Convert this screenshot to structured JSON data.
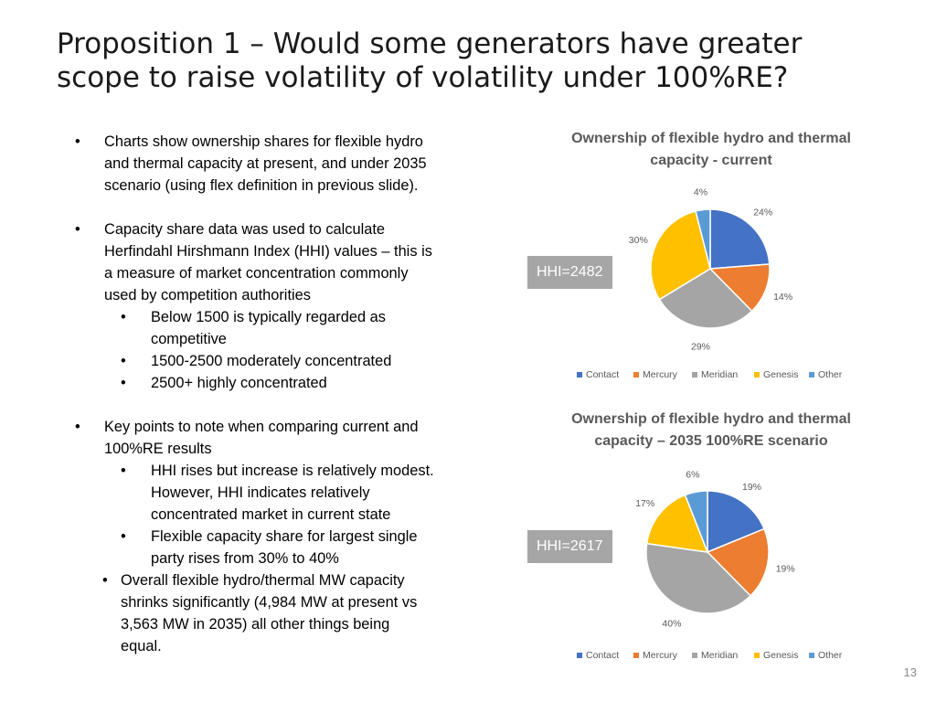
{
  "slide": {
    "title_line1": "Proposition 1 – Would some generators have greater",
    "title_line2": "scope to raise volatility of volatility under 100%RE?",
    "page_number": "13"
  },
  "bullets": {
    "b1_l1": "Charts show ownership shares for flexible hydro",
    "b1_l2": "and thermal capacity at present, and under 2035",
    "b1_l3": "scenario (using flex definition in previous slide).",
    "b2_l1": "Capacity share data was used to calculate",
    "b2_l2": "Herfindahl Hirshmann Index (HHI) values – this is",
    "b2_l3": "a measure of market concentration commonly",
    "b2_l4": "used by competition authorities",
    "b2a_l1": "Below 1500 is typically regarded as",
    "b2a_l2": "competitive",
    "b2b_l1": "1500-2500 moderately concentrated",
    "b2c_l1": "2500+ highly concentrated",
    "b3_l1": "Key points to note when comparing current and",
    "b3_l2": "100%RE results",
    "b3a_l1": "HHI rises but increase is relatively modest.",
    "b3a_l2": "However, HHI indicates relatively",
    "b3a_l3": "concentrated market in current state",
    "b3b_l1": "Flexible capacity share for largest single",
    "b3b_l2": "party rises from 30% to 40%",
    "b4_l1": "Overall flexible hydro/thermal MW capacity",
    "b4_l2": "shrinks significantly (4,984 MW at present vs",
    "b4_l3": "3,563 MW in 2035) all other things being",
    "b4_l4": "equal.",
    "bullet_char": "•"
  },
  "chart_data": [
    {
      "type": "pie",
      "title_line1": "Ownership of flexible hydro and thermal",
      "title_line2": "capacity - current",
      "hhi_label": "HHI=2482",
      "categories": [
        "Contact",
        "Mercury",
        "Meridian",
        "Genesis",
        "Other"
      ],
      "values": [
        24,
        14,
        29,
        30,
        4
      ],
      "labels": [
        "24%",
        "14%",
        "29%",
        "30%",
        "4%"
      ],
      "colors": [
        "#4472C4",
        "#ED7D31",
        "#A5A5A5",
        "#FFC000",
        "#5B9BD5"
      ],
      "legend_position": "bottom"
    },
    {
      "type": "pie",
      "title_line1": "Ownership of flexible hydro and thermal",
      "title_line2": "capacity – 2035 100%RE scenario",
      "hhi_label": "HHI=2617",
      "categories": [
        "Contact",
        "Mercury",
        "Meridian",
        "Genesis",
        "Other"
      ],
      "values": [
        19,
        19,
        40,
        17,
        6
      ],
      "labels": [
        "19%",
        "19%",
        "40%",
        "17%",
        "6%"
      ],
      "colors": [
        "#4472C4",
        "#ED7D31",
        "#A5A5A5",
        "#FFC000",
        "#5B9BD5"
      ],
      "legend_position": "bottom"
    }
  ]
}
